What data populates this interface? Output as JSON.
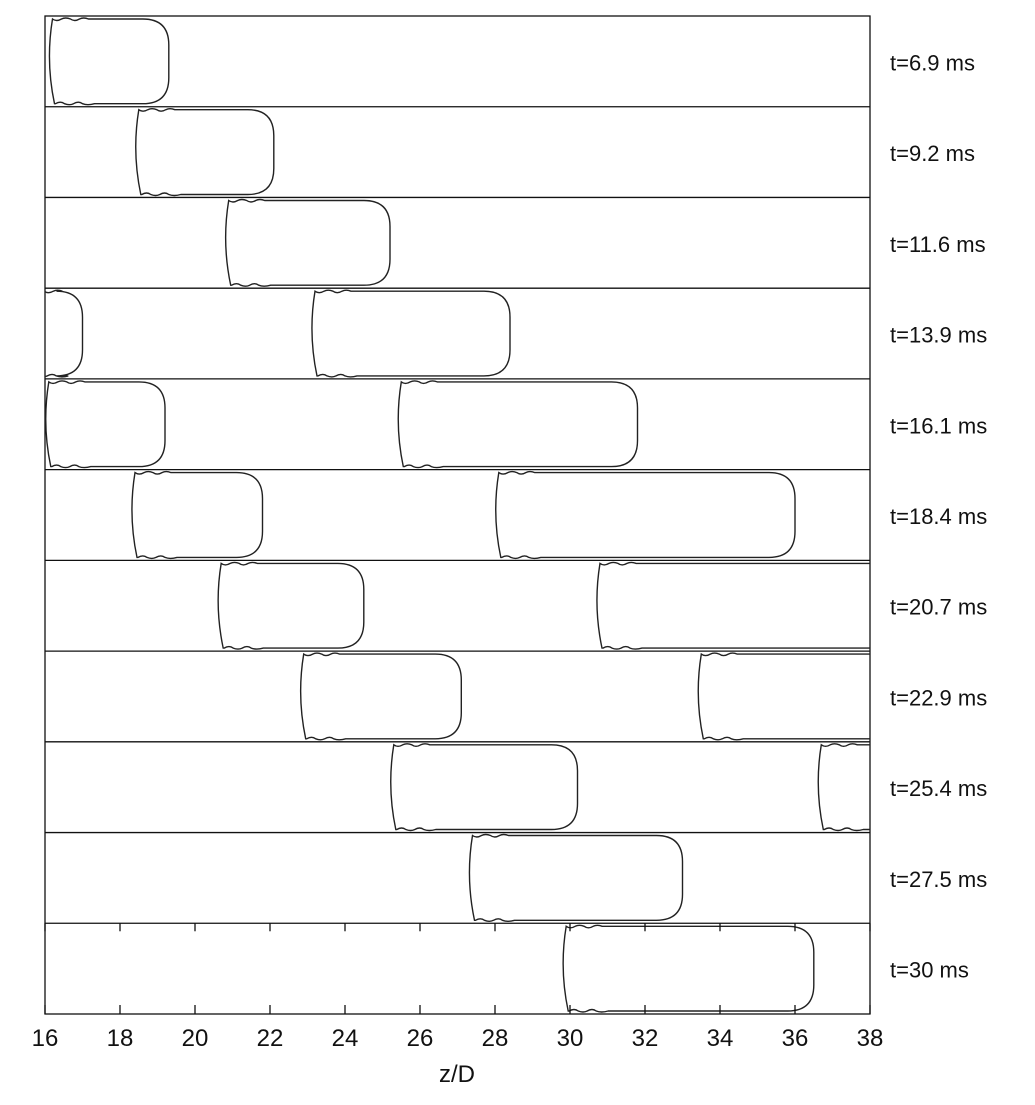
{
  "chart_data": {
    "type": "line",
    "xlabel": "z/D",
    "ylabel": "",
    "xlim": [
      16,
      38
    ],
    "x_ticks": [
      "16",
      "18",
      "20",
      "22",
      "24",
      "26",
      "28",
      "30",
      "32",
      "34",
      "36",
      "38"
    ],
    "grid": false,
    "panels": [
      {
        "label": "t=6.9 ms",
        "bubbles": [
          [
            16.2,
            19.3
          ]
        ]
      },
      {
        "label": "t=9.2 ms",
        "bubbles": [
          [
            18.5,
            22.1
          ]
        ]
      },
      {
        "label": "t=11.6 ms",
        "bubbles": [
          [
            20.9,
            25.2
          ]
        ]
      },
      {
        "label": "t=13.9 ms",
        "bubbles": [
          [
            15.5,
            17.0
          ],
          [
            23.2,
            28.4
          ]
        ]
      },
      {
        "label": "t=16.1 ms",
        "bubbles": [
          [
            16.1,
            19.2
          ],
          [
            25.5,
            31.8
          ]
        ]
      },
      {
        "label": "t=18.4 ms",
        "bubbles": [
          [
            18.4,
            21.8
          ],
          [
            28.1,
            36.0
          ]
        ]
      },
      {
        "label": "t=20.7 ms",
        "bubbles": [
          [
            20.7,
            24.5
          ],
          [
            30.8,
            38.8
          ]
        ]
      },
      {
        "label": "t=22.9 ms",
        "bubbles": [
          [
            22.9,
            27.1
          ],
          [
            33.5,
            38.8
          ]
        ]
      },
      {
        "label": "t=25.4 ms",
        "bubbles": [
          [
            25.3,
            30.2
          ],
          [
            36.7,
            38.8
          ]
        ]
      },
      {
        "label": "t=27.5 ms",
        "bubbles": [
          [
            27.4,
            33.0
          ]
        ]
      },
      {
        "label": "t=30 ms",
        "bubbles": [
          [
            29.9,
            36.5
          ]
        ]
      }
    ]
  }
}
